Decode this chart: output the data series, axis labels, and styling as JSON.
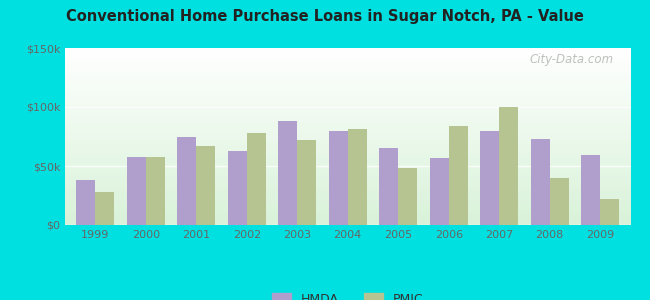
{
  "title": "Conventional Home Purchase Loans in Sugar Notch, PA - Value",
  "years": [
    1999,
    2000,
    2001,
    2002,
    2003,
    2004,
    2005,
    2006,
    2007,
    2008,
    2009
  ],
  "hmda": [
    38000,
    58000,
    75000,
    63000,
    88000,
    80000,
    65000,
    57000,
    80000,
    73000,
    59000
  ],
  "pmic": [
    28000,
    58000,
    67000,
    78000,
    72000,
    81000,
    48000,
    84000,
    100000,
    40000,
    22000
  ],
  "hmda_color": "#b09fcc",
  "pmic_color": "#b5c490",
  "outer_background": "#00e0e0",
  "ylim": [
    0,
    150000
  ],
  "yticks": [
    0,
    50000,
    100000,
    150000
  ],
  "ytick_labels": [
    "$0",
    "$50k",
    "$100k",
    "$150k"
  ],
  "bar_width": 0.38,
  "legend_hmda": "HMDA",
  "legend_pmic": "PMIC",
  "grid_color": "#ccddcc",
  "tick_color": "#666666"
}
